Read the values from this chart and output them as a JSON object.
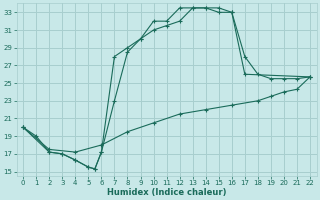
{
  "xlabel": "Humidex (Indice chaleur)",
  "xlim": [
    -0.5,
    22.5
  ],
  "ylim": [
    14.5,
    34.0
  ],
  "yticks": [
    15,
    17,
    19,
    21,
    23,
    25,
    27,
    29,
    31,
    33
  ],
  "xticks": [
    0,
    1,
    2,
    3,
    4,
    5,
    6,
    7,
    8,
    9,
    10,
    11,
    12,
    13,
    14,
    15,
    16,
    17,
    18,
    19,
    20,
    21,
    22
  ],
  "bg_color": "#c8e8e8",
  "grid_color": "#a8cece",
  "line_color": "#1a6b5a",
  "line1_x": [
    0,
    1,
    2,
    3,
    4,
    5,
    5.5,
    6,
    7,
    8,
    9,
    10,
    11,
    12,
    13,
    14,
    15,
    16,
    17,
    22
  ],
  "line1_y": [
    20.0,
    19.0,
    17.2,
    17.0,
    16.3,
    15.5,
    15.3,
    17.2,
    28.0,
    29.0,
    30.0,
    32.0,
    32.0,
    33.5,
    33.5,
    33.5,
    33.0,
    33.0,
    26.0,
    25.7
  ],
  "line2_x": [
    0,
    2,
    3,
    4,
    5,
    5.5,
    6,
    7,
    8,
    9,
    10,
    11,
    12,
    13,
    14,
    15,
    16,
    17,
    18,
    19,
    20,
    21,
    22
  ],
  "line2_y": [
    20.0,
    17.2,
    17.0,
    16.3,
    15.5,
    15.3,
    17.2,
    23.0,
    28.5,
    30.0,
    31.0,
    31.5,
    32.0,
    33.5,
    33.5,
    33.5,
    33.0,
    28.0,
    26.0,
    25.5,
    25.5,
    25.5,
    25.7
  ],
  "line3_x": [
    0,
    2,
    4,
    6,
    8,
    10,
    12,
    14,
    16,
    18,
    19,
    20,
    21,
    22
  ],
  "line3_y": [
    20.0,
    17.5,
    17.2,
    18.0,
    19.5,
    20.5,
    21.5,
    22.0,
    22.5,
    23.0,
    23.5,
    24.0,
    24.3,
    25.7
  ]
}
